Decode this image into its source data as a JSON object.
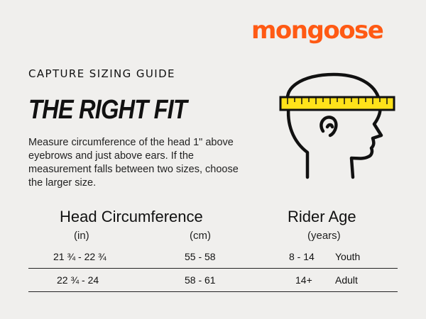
{
  "brand": {
    "logo": "mongoose",
    "accent": "#ff5a14",
    "tape_color": "#ffe21a"
  },
  "header": {
    "eyebrow": "CAPTURE SIZING GUIDE",
    "title": "THE RIGHT FIT"
  },
  "description": "Measure circumference of the head 1\" above eyebrows and just above ears. If the measurement falls between two sizes, choose the larger size.",
  "illustration": {
    "icon": "head-measuring-tape-icon"
  },
  "table": {
    "head_circumference": {
      "heading": "Head Circumference",
      "unit_in": "(in)",
      "unit_cm": "(cm)"
    },
    "rider_age": {
      "heading": "Rider Age",
      "unit": "(years)"
    },
    "rows": [
      {
        "in": "21 ¾ - 22 ¾",
        "cm": "55 - 58",
        "age": "8 - 14",
        "label": "Youth"
      },
      {
        "in": "22 ¾ - 24",
        "cm": "58 - 61",
        "age": "14+",
        "label": "Adult"
      }
    ]
  }
}
